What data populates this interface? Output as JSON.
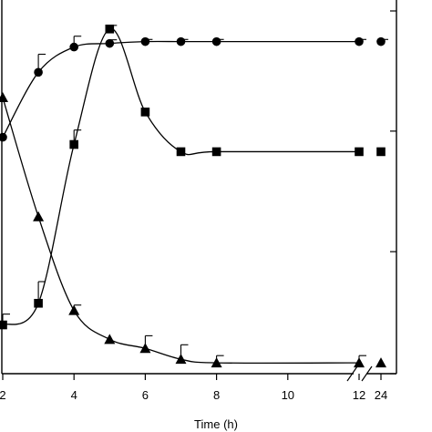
{
  "chart_data": {
    "type": "line",
    "title": "",
    "xlabel": "Time (h)",
    "ylabel": "",
    "x_ticks": [
      2,
      4,
      6,
      8,
      10,
      12,
      24
    ],
    "x_tick_labels": [
      "2",
      "4",
      "6",
      "8",
      "10",
      "12",
      "24"
    ],
    "xlim": [
      2,
      24
    ],
    "ylim": [
      0,
      100
    ],
    "right_axis_ticks": [
      0,
      33.3,
      66.7,
      100
    ],
    "x_axis_break": "between 12 and 24",
    "grid": false,
    "legend": "none",
    "series": [
      {
        "marker": "circle",
        "x": [
          2,
          3,
          4,
          5,
          6,
          7,
          8,
          12,
          24
        ],
        "values": [
          65,
          83,
          90,
          91,
          91.5,
          91.5,
          91.5,
          91.5,
          91.5
        ],
        "error_up": [
          0,
          5,
          3,
          1,
          0.6,
          0.6,
          0.6,
          0.6,
          0.6
        ]
      },
      {
        "marker": "square",
        "x": [
          2,
          3,
          4,
          5,
          6,
          7,
          8,
          12,
          24
        ],
        "values": [
          13,
          19,
          63,
          95,
          72,
          61,
          61,
          61,
          61
        ],
        "error_up": [
          3,
          6,
          4,
          1,
          0,
          0,
          0,
          0,
          0
        ]
      },
      {
        "marker": "triangle",
        "x": [
          2,
          3,
          4,
          5,
          6,
          7,
          8,
          12,
          24
        ],
        "values": [
          76,
          43,
          17,
          9,
          6.5,
          3.5,
          2.5,
          2.5,
          2.5
        ],
        "error_up": [
          0,
          0,
          1.5,
          0,
          3.5,
          4,
          2,
          2,
          0
        ]
      }
    ]
  }
}
